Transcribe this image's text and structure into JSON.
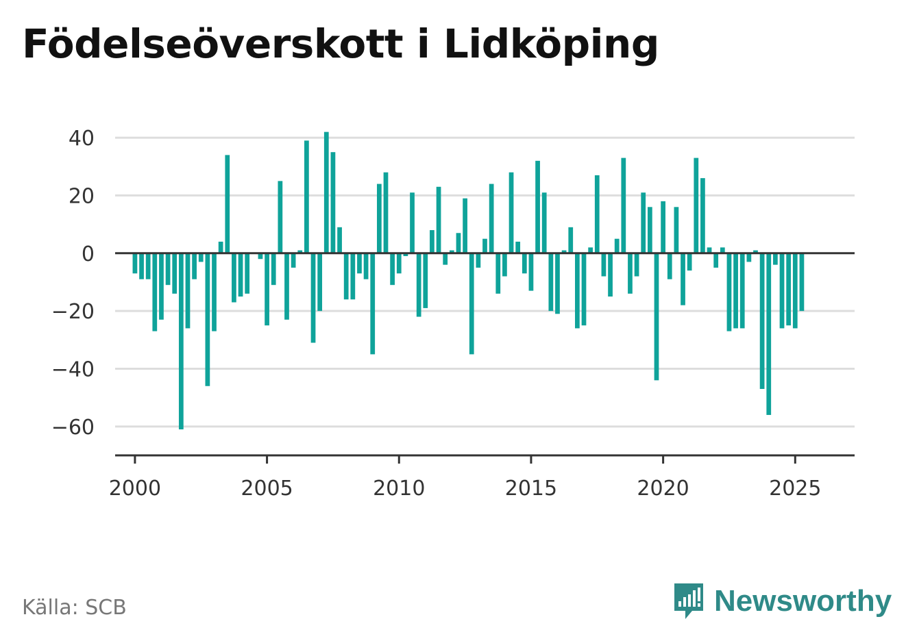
{
  "title": "Födelseöverskott i Lidköping",
  "source": "Källa: SCB",
  "brand": "Newsworthy",
  "colors": {
    "bar": "#0fa39a",
    "brand": "#2f8a88",
    "grid": "#dddddd",
    "axis": "#333333"
  },
  "chart_data": {
    "type": "bar",
    "title": "Födelseöverskott i Lidköping",
    "xlabel": "",
    "ylabel": "",
    "ylim": [
      -70,
      45
    ],
    "xlim": [
      1999.25,
      2027.25
    ],
    "yticks": [
      -60,
      -40,
      -20,
      0,
      20,
      40
    ],
    "xticks": [
      2000,
      2005,
      2010,
      2015,
      2020,
      2025
    ],
    "grid": true,
    "values": [
      -7,
      -9,
      -9,
      -27,
      -23,
      -11,
      -14,
      -61,
      -26,
      -9,
      -3,
      -46,
      -27,
      4,
      34,
      -17,
      -15,
      -14,
      0,
      -2,
      -25,
      -11,
      25,
      -23,
      -5,
      1,
      39,
      -31,
      -20,
      42,
      35,
      9,
      -16,
      -16,
      -7,
      -9,
      -35,
      24,
      28,
      -11,
      -7,
      -1,
      21,
      -22,
      -19,
      8,
      23,
      -4,
      1,
      7,
      19,
      -35,
      -5,
      5,
      24,
      -14,
      -8,
      28,
      4,
      -7,
      -13,
      32,
      21,
      -20,
      -21,
      1,
      9,
      -26,
      -25,
      2,
      27,
      -8,
      -15,
      5,
      33,
      -14,
      -8,
      21,
      16,
      -44,
      18,
      -9,
      16,
      -18,
      -6,
      33,
      26,
      2,
      -5,
      2,
      -27,
      -26,
      -26,
      -3,
      1,
      -47,
      -56,
      -4,
      -26,
      -25,
      -26,
      -20
    ],
    "start_year": 2000,
    "periods_per_year": 4
  }
}
